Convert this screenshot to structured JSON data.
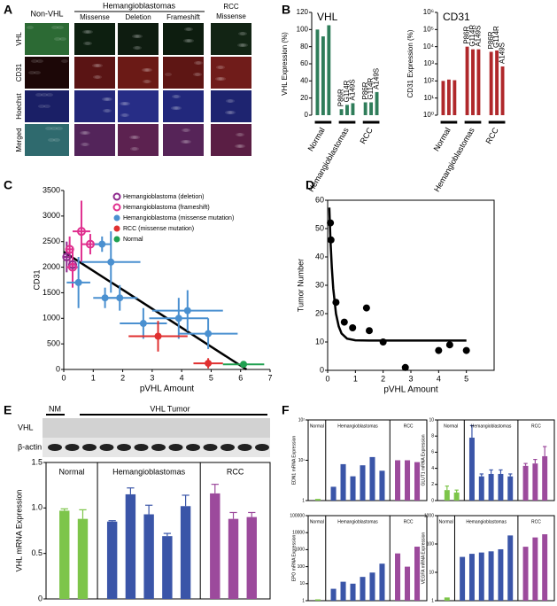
{
  "panel_labels": [
    "A",
    "B",
    "C",
    "D",
    "E",
    "F"
  ],
  "image_panel": {
    "non_vhl": "Non-VHL",
    "group": "Hemangioblastomas",
    "subtypes": [
      "Missense",
      "Deletion",
      "Frameshift"
    ],
    "rcc": [
      "RCC",
      "Missense"
    ],
    "row_labels": [
      "VHL",
      "CD31",
      "Hoechst",
      "Merged"
    ]
  },
  "blot": {
    "nm": "NM",
    "tumor": "VHL Tumor",
    "rows": [
      "VHL",
      "β-actin"
    ]
  },
  "chart_data": [
    {
      "type": "bar",
      "title": "VHL",
      "y_label": "VHL Expression (%)",
      "color": "#2f7d5a",
      "ylim": [
        0,
        120
      ],
      "yticks": [
        0,
        20,
        40,
        60,
        80,
        100,
        120
      ],
      "groups": [
        {
          "name": "Normal",
          "values": [
            100,
            92,
            105
          ]
        },
        {
          "name": "Hemangioblastomas",
          "values": [
            7,
            12,
            14
          ],
          "bar_labels": [
            "P86R",
            "G114R",
            "A149S"
          ]
        },
        {
          "name": "RCC",
          "values": [
            15,
            15,
            27
          ],
          "bar_labels": [
            "P86R",
            "G114R",
            "A149S"
          ]
        }
      ]
    },
    {
      "type": "bar",
      "title": "CD31",
      "y_label": "CD31 Expression (%)",
      "color": "#b0282b",
      "log": true,
      "ylim": [
        1,
        1000000
      ],
      "yticks": [
        {
          "value": 1,
          "label": "10⁰"
        },
        {
          "value": 10,
          "label": "10¹"
        },
        {
          "value": 100,
          "label": "10²"
        },
        {
          "value": 1000,
          "label": "10³"
        },
        {
          "value": 10000,
          "label": "10⁴"
        },
        {
          "value": 100000,
          "label": "10⁵"
        },
        {
          "value": 1000000,
          "label": "10⁶"
        }
      ],
      "groups": [
        {
          "name": "Normal",
          "values": [
            100,
            120,
            110
          ]
        },
        {
          "name": "Hemangioblastomas",
          "values": [
            10000,
            7000,
            7000
          ],
          "bar_labels": [
            "P86R",
            "G114R",
            "A149S"
          ]
        },
        {
          "name": "RCC",
          "values": [
            5000,
            6000,
            700
          ],
          "bar_labels": [
            "P86R",
            "G114R",
            "A149S"
          ]
        }
      ]
    },
    {
      "type": "scatter",
      "x_label": "pVHL Amount",
      "y_label": "CD31",
      "legend": "upper left",
      "xlim": [
        0,
        7
      ],
      "xticks": [
        0,
        1,
        2,
        3,
        4,
        5,
        6,
        7
      ],
      "ylim": [
        0,
        3500
      ],
      "yticks": [
        0,
        500,
        1000,
        1500,
        2000,
        2500,
        3000,
        3500
      ],
      "series": [
        {
          "name": "Hemangioblastoma (deletion)",
          "color": "#8e2a8e",
          "marker": "open",
          "x": [
            0.1,
            0.3
          ],
          "y": [
            2200,
            2050
          ],
          "xerr": [
            0.1,
            0.15
          ],
          "yerr": [
            300,
            250
          ]
        },
        {
          "name": "Hemangioblastoma (frameshift)",
          "color": "#e0308f",
          "marker": "open",
          "x": [
            0.6,
            0.9,
            0.3,
            0.2
          ],
          "y": [
            2700,
            2450,
            2000,
            2350
          ],
          "xerr": [
            0.3,
            0.3,
            0.2,
            0.15
          ],
          "yerr": [
            600,
            200,
            400,
            250
          ]
        },
        {
          "name": "Hemangioblastoma (missense mutation)",
          "color": "#4a90d0",
          "marker": "filled",
          "x": [
            0.5,
            1.3,
            1.6,
            1.4,
            1.9,
            2.7,
            3.9,
            4.2,
            4.9
          ],
          "y": [
            1700,
            2450,
            2100,
            1400,
            1400,
            900,
            1000,
            1150,
            700
          ],
          "xerr": [
            0.4,
            0.3,
            1,
            0.4,
            0.6,
            0.8,
            1,
            1.2,
            1
          ],
          "yerr": [
            500,
            150,
            600,
            200,
            250,
            300,
            400,
            400,
            300
          ]
        },
        {
          "name": "RCC (missense mutation)",
          "color": "#e03030",
          "marker": "filled",
          "x": [
            3.2,
            4.9
          ],
          "y": [
            650,
            120
          ],
          "xerr": [
            1,
            0.5
          ],
          "yerr": [
            300,
            100
          ]
        },
        {
          "name": "Normal",
          "color": "#20a050",
          "marker": "filled",
          "x": [
            6.1
          ],
          "y": [
            100
          ],
          "xerr": [
            0.7
          ],
          "yerr": [
            50
          ]
        }
      ],
      "fit": {
        "x": [
          0,
          6.2
        ],
        "y": [
          2300,
          0
        ]
      }
    },
    {
      "type": "scatter",
      "x_label": "pVHL Amount",
      "y_label": "Tumor Number",
      "box": true,
      "xlim": [
        0,
        6
      ],
      "xticks": [
        0,
        1,
        2,
        3,
        4,
        5
      ],
      "ylim": [
        0,
        60
      ],
      "yticks": [
        0,
        10,
        20,
        30,
        40,
        50,
        60
      ],
      "series": [
        {
          "color": "#000000",
          "marker": "filled",
          "x": [
            0.1,
            0.12,
            0.3,
            0.6,
            0.9,
            1.4,
            1.5,
            2,
            2.8,
            4,
            4.4,
            5
          ],
          "y": [
            52,
            46,
            24,
            17,
            15,
            22,
            14,
            10,
            1,
            7,
            9,
            7
          ]
        }
      ],
      "fit": {
        "x": [
          0.06,
          0.1,
          0.15,
          0.2,
          0.3,
          0.4,
          0.5,
          0.7,
          1,
          1.5,
          2,
          3,
          4,
          5
        ],
        "y": [
          57.4,
          46.4,
          36.3,
          28.9,
          20.0,
          15.5,
          13.0,
          11.2,
          10.6,
          10.5,
          10.5,
          10.5,
          10.5,
          10.5
        ]
      }
    },
    {
      "type": "bar",
      "y_label": "VHL mRNA Expression",
      "box": true,
      "ylim": [
        0,
        1.5
      ],
      "yticks": [
        0,
        0.5,
        {
          "value": 1,
          "label": "1.0"
        },
        1.5
      ],
      "groups": [
        {
          "name": "Normal",
          "color": "#7dc54a",
          "values": [
            0.97,
            0.88
          ],
          "errors": [
            0.02,
            0.1
          ]
        },
        {
          "name": "Hemangioblastomas",
          "color": "#3a55a8",
          "values": [
            0.85,
            1.15,
            0.93,
            0.69,
            1.02
          ],
          "errors": [
            0.01,
            0.07,
            0.1,
            0.03,
            0.12
          ]
        },
        {
          "name": "RCC",
          "color": "#9c4a9c",
          "values": [
            1.16,
            0.88,
            0.9
          ],
          "errors": [
            0.1,
            0.07,
            0.05
          ]
        }
      ]
    },
    {
      "type": "bar",
      "y_label": "EDN1 mRNA Expression",
      "box": true,
      "log": true,
      "ylim": [
        1,
        100
      ],
      "yticks": [
        1,
        {
          "value": 10,
          "label": "10¹"
        },
        {
          "value": 100,
          "label": "10²"
        }
      ],
      "groups": [
        {
          "name": "Normal",
          "color": "#7dc54a",
          "values": [
            1.1
          ]
        },
        {
          "name": "Hemangioblastomas",
          "color": "#3a55a8",
          "values": [
            2.2,
            8,
            4,
            7.5,
            12,
            5.5
          ]
        },
        {
          "name": "RCC",
          "color": "#9c4a9c",
          "values": [
            10,
            10,
            9
          ]
        }
      ]
    },
    {
      "type": "bar",
      "y_label": "GLUT1 mRNA Expression",
      "box": true,
      "ylim": [
        0,
        10
      ],
      "yticks": [
        0,
        2,
        4,
        6,
        8,
        10
      ],
      "groups": [
        {
          "name": "Normal",
          "color": "#7dc54a",
          "values": [
            1.3,
            1
          ],
          "errors": [
            0.5,
            0.3
          ]
        },
        {
          "name": "Hemangioblastomas",
          "color": "#3a55a8",
          "values": [
            7.8,
            3,
            3.3,
            3.3,
            3
          ],
          "errors": [
            1.5,
            0.3,
            0.5,
            0.5,
            0.3
          ]
        },
        {
          "name": "RCC",
          "color": "#9c4a9c",
          "values": [
            4.3,
            4.6,
            5.5
          ],
          "errors": [
            0.3,
            0.5,
            1.2
          ]
        }
      ]
    },
    {
      "type": "bar",
      "y_label": "EPO mRNA Expression",
      "box": true,
      "log": true,
      "ylim": [
        1,
        100000
      ],
      "yticks": [
        1,
        10,
        100,
        1000,
        10000,
        100000
      ],
      "groups": [
        {
          "name": "Normal",
          "color": "#7dc54a",
          "values": [
            1.2
          ]
        },
        {
          "name": "Hemangioblastomas",
          "color": "#3a55a8",
          "values": [
            5,
            13,
            10,
            25,
            45,
            150
          ]
        },
        {
          "name": "RCC",
          "color": "#9c4a9c",
          "values": [
            600,
            100,
            1500
          ]
        }
      ]
    },
    {
      "type": "bar",
      "y_label": "VEGFA mRNA Expression",
      "box": true,
      "log": true,
      "ylim": [
        1,
        1000
      ],
      "yticks": [
        1,
        10,
        100,
        1000
      ],
      "groups": [
        {
          "name": "Normal",
          "color": "#7dc54a",
          "values": [
            1.3
          ]
        },
        {
          "name": "Hemangioblastomas",
          "color": "#3a55a8",
          "values": [
            35,
            45,
            50,
            55,
            65,
            200
          ]
        },
        {
          "name": "RCC",
          "color": "#9c4a9c",
          "values": [
            80,
            170,
            220
          ]
        }
      ]
    }
  ]
}
